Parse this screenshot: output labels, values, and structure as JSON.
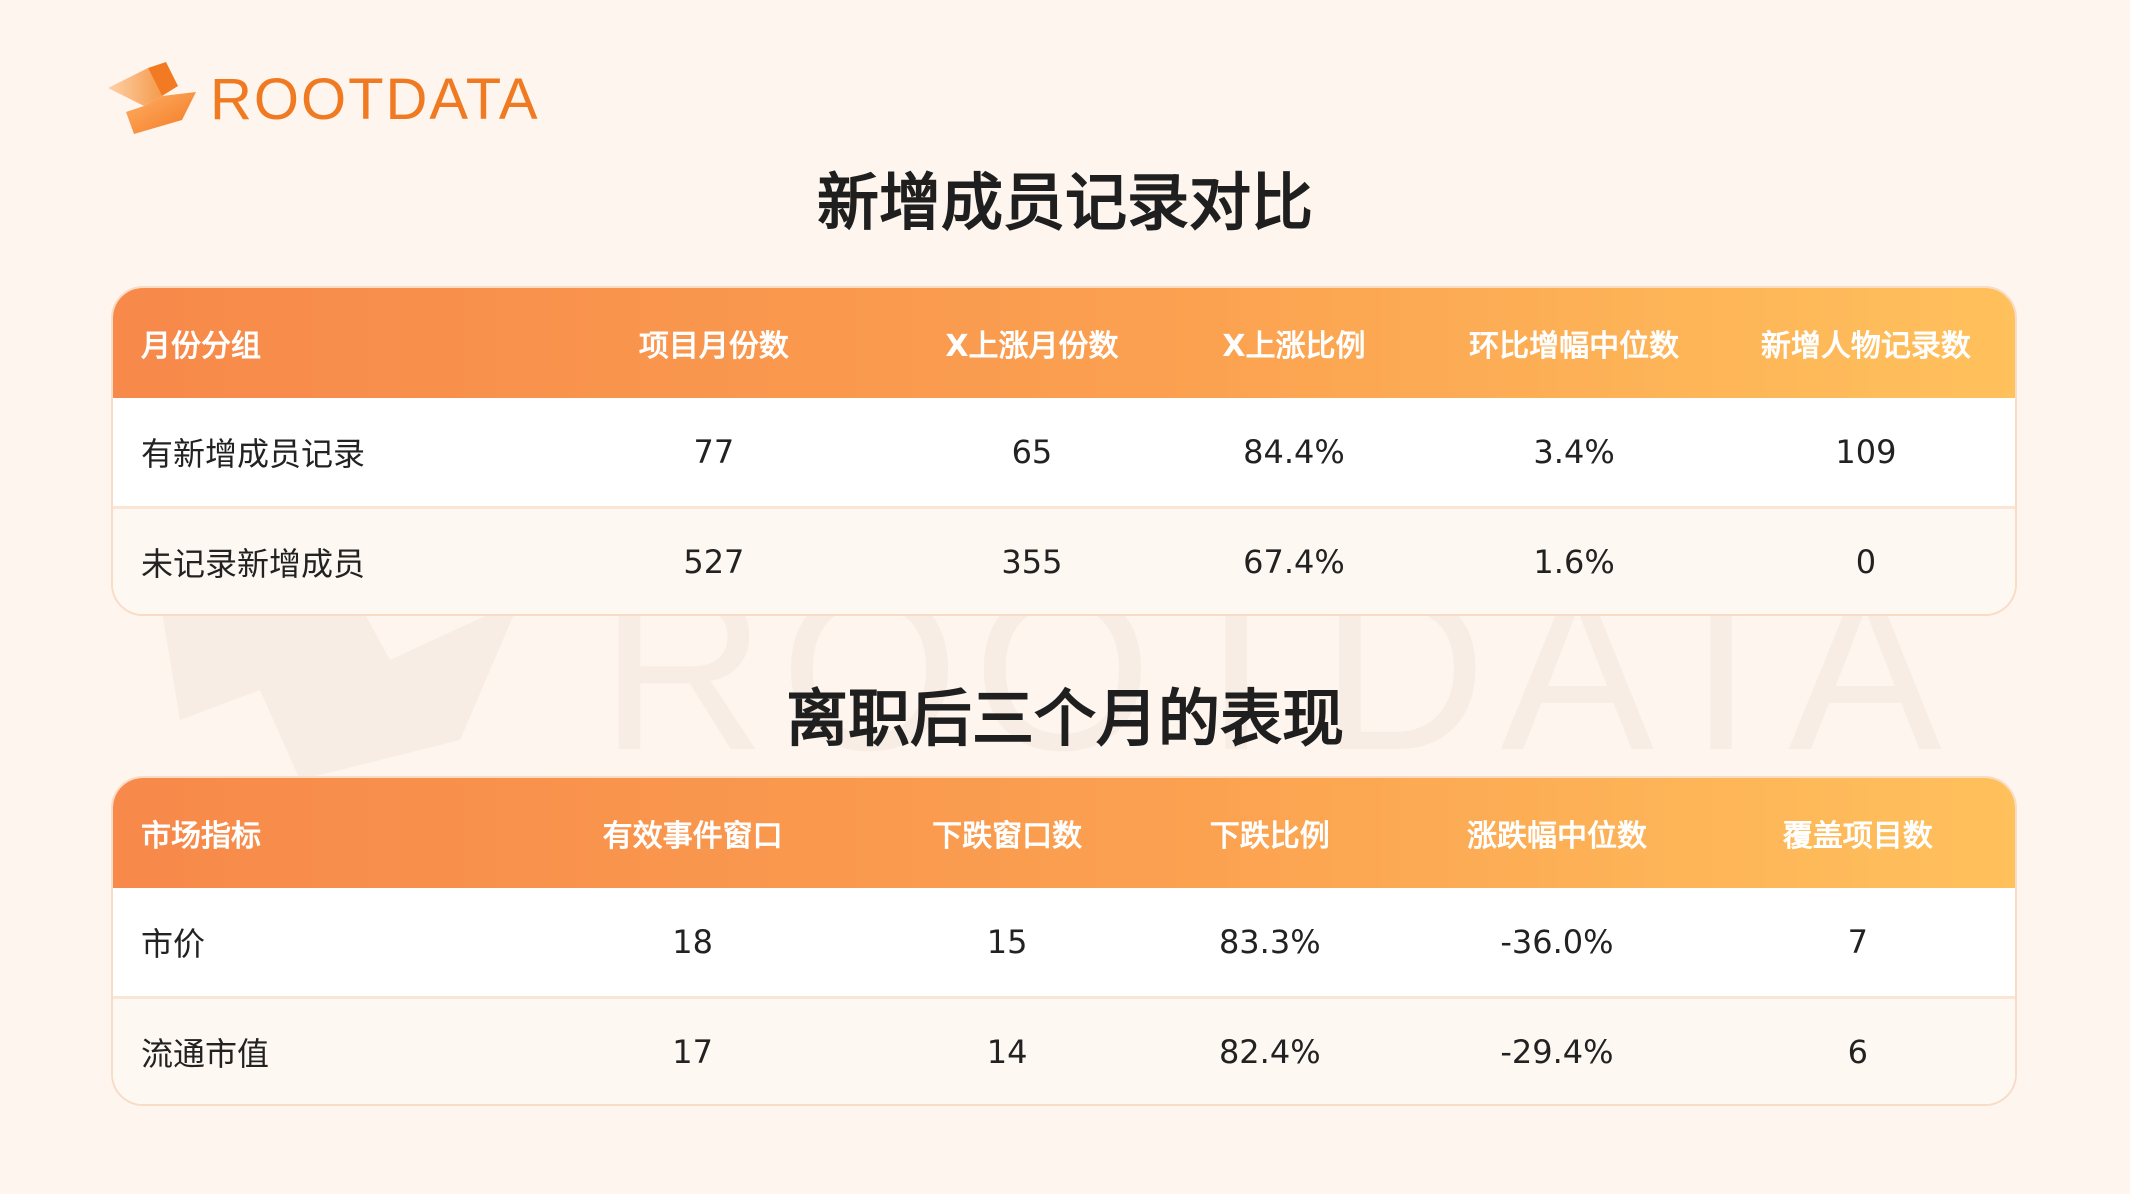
{
  "brand": {
    "name": "ROOTDATA",
    "watermark": "ROOTDATA",
    "color": "#f07a22"
  },
  "sections": [
    {
      "title": "新增成员记录对比",
      "headers": [
        "月份分组",
        "项目月份数",
        "X上涨月份数",
        "X上涨比例",
        "环比增幅中位数",
        "新增人物记录数"
      ],
      "rows": [
        [
          "有新增成员记录",
          "77",
          "65",
          "84.4%",
          "3.4%",
          "109"
        ],
        [
          "未记录新增成员",
          "527",
          "355",
          "67.4%",
          "1.6%",
          "0"
        ]
      ]
    },
    {
      "title": "离职后三个月的表现",
      "headers": [
        "市场指标",
        "有效事件窗口",
        "下跌窗口数",
        "下跌比例",
        "涨跌幅中位数",
        "覆盖项目数"
      ],
      "rows": [
        [
          "市价",
          "18",
          "15",
          "83.3%",
          "-36.0%",
          "7"
        ],
        [
          "流通市值",
          "17",
          "14",
          "82.4%",
          "-29.4%",
          "6"
        ]
      ]
    }
  ],
  "colors": {
    "header_start": "#f7894a",
    "header_end": "#ffc15c",
    "background": "#fdf5ee"
  },
  "icons": {
    "logo": "rootdata-logo-icon"
  }
}
